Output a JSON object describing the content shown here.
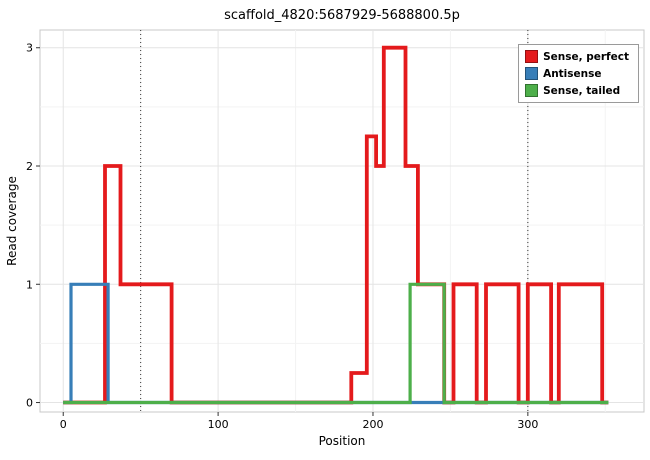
{
  "chart_data": {
    "type": "line",
    "subtype": "step",
    "title": "scaffold_4820:5687929-5688800.5p",
    "xlabel": "Position",
    "ylabel": "Read coverage",
    "xlim": [
      -15,
      375
    ],
    "ylim": [
      -0.08,
      3.15
    ],
    "x_ticks": [
      0,
      100,
      200,
      300
    ],
    "y_ticks": [
      0,
      1,
      2,
      3
    ],
    "x_minor": [
      50,
      150,
      250,
      350
    ],
    "y_minor": [
      0.5,
      1.5,
      2.5
    ],
    "guide_vlines": [
      50,
      300
    ],
    "grid": true,
    "legend_position": "top-right",
    "colors": {
      "sense_perfect": "#e41a1c",
      "antisense": "#377eb8",
      "sense_tailed": "#4daf4a",
      "grid_major": "#e4e4e4",
      "grid_minor": "#f3f3f3",
      "panel_border": "#c8c8c8",
      "guide_line": "#333333"
    },
    "series": [
      {
        "name": "Sense, perfect",
        "color": "#e41a1c",
        "width": 3.8,
        "points": [
          [
            0,
            0
          ],
          [
            27,
            0
          ],
          [
            27,
            2
          ],
          [
            37,
            2
          ],
          [
            37,
            1
          ],
          [
            70,
            1
          ],
          [
            70,
            0
          ],
          [
            186,
            0
          ],
          [
            186,
            0.25
          ],
          [
            196,
            0.25
          ],
          [
            196,
            2.25
          ],
          [
            202,
            2.25
          ],
          [
            202,
            2
          ],
          [
            207,
            2
          ],
          [
            207,
            3
          ],
          [
            221,
            3
          ],
          [
            221,
            2
          ],
          [
            229,
            2
          ],
          [
            229,
            1
          ],
          [
            246,
            1
          ],
          [
            246,
            0
          ],
          [
            252,
            0
          ],
          [
            252,
            1
          ],
          [
            267,
            1
          ],
          [
            267,
            0
          ],
          [
            273,
            0
          ],
          [
            273,
            1
          ],
          [
            294,
            1
          ],
          [
            294,
            0
          ],
          [
            300,
            0
          ],
          [
            300,
            1
          ],
          [
            315,
            1
          ],
          [
            315,
            0
          ],
          [
            320,
            0
          ],
          [
            320,
            1
          ],
          [
            348,
            1
          ],
          [
            348,
            0
          ],
          [
            352,
            0
          ]
        ]
      },
      {
        "name": "Antisense",
        "color": "#377eb8",
        "width": 3.2,
        "points": [
          [
            0,
            0
          ],
          [
            5,
            0
          ],
          [
            5,
            1
          ],
          [
            29,
            1
          ],
          [
            29,
            0
          ],
          [
            352,
            0
          ]
        ]
      },
      {
        "name": "Sense, tailed",
        "color": "#4daf4a",
        "width": 3.2,
        "points": [
          [
            0,
            0
          ],
          [
            224,
            0
          ],
          [
            224,
            1
          ],
          [
            246,
            1
          ],
          [
            246,
            0
          ],
          [
            352,
            0
          ]
        ]
      }
    ]
  }
}
